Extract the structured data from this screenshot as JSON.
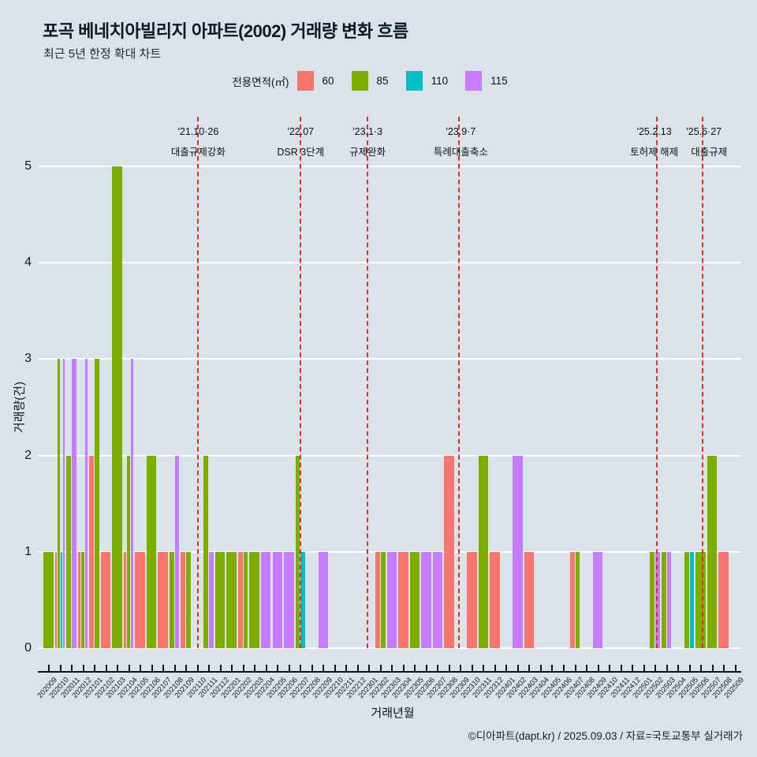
{
  "title": "포곡 베네치아빌리지 아파트(2002) 거래량 변화 흐름",
  "subtitle": "최근 5년 한정 확대 차트",
  "legend": {
    "label": "전용면적(㎡)",
    "items": [
      {
        "name": "60",
        "color": "#f8766d"
      },
      {
        "name": "85",
        "color": "#7cae00"
      },
      {
        "name": "110",
        "color": "#00bfc4"
      },
      {
        "name": "115",
        "color": "#c77cff"
      }
    ]
  },
  "footer": "©디아파트(dapt.kr) / 2025.09.03 / 자료=국토교통부 실거래가",
  "chart_data": {
    "type": "bar",
    "title": "포곡 베네치아빌리지 아파트(2002) 거래량 변화 흐름",
    "xlabel": "거래년월",
    "ylabel": "거래량(건)",
    "ylim": [
      0,
      5
    ],
    "yticks": [
      0,
      1,
      2,
      3,
      4,
      5
    ],
    "grid": "horizontal-white",
    "legend_position": "top-center",
    "categories": [
      "202009",
      "202010",
      "202011",
      "202012",
      "202101",
      "202102",
      "202103",
      "202104",
      "202105",
      "202106",
      "202107",
      "202108",
      "202109",
      "202110",
      "202111",
      "202112",
      "202201",
      "202202",
      "202203",
      "202204",
      "202205",
      "202206",
      "202207",
      "202208",
      "202209",
      "202210",
      "202211",
      "202212",
      "202301",
      "202302",
      "202303",
      "202304",
      "202305",
      "202306",
      "202307",
      "202308",
      "202309",
      "202310",
      "202311",
      "202312",
      "202401",
      "202402",
      "202403",
      "202404",
      "202405",
      "202406",
      "202407",
      "202408",
      "202409",
      "202410",
      "202411",
      "202412",
      "202501",
      "202502",
      "202503",
      "202504",
      "202505",
      "202506",
      "202507",
      "202508",
      "202509"
    ],
    "series": [
      {
        "name": "60",
        "color": "#f8766d",
        "values": {
          "202010": 1,
          "202012": 1,
          "202101": 2,
          "202102": 1,
          "202104": 1,
          "202105": 1,
          "202107": 1,
          "202109": 1,
          "202202": 1,
          "202302": 1,
          "202304": 1,
          "202308": 2,
          "202310": 1,
          "202312": 1,
          "202403": 1,
          "202407": 1,
          "202508": 1
        }
      },
      {
        "name": "85",
        "color": "#7cae00",
        "values": {
          "202009": 1,
          "202010": 3,
          "202011": 2,
          "202012": 1,
          "202101": 3,
          "202103": 5,
          "202104": 2,
          "202106": 2,
          "202108": 1,
          "202109": 1,
          "202111": 2,
          "202112": 1,
          "202201": 1,
          "202202": 1,
          "202203": 1,
          "202207": 2,
          "202302": 1,
          "202305": 1,
          "202311": 2,
          "202407": 1,
          "202502": 1,
          "202503": 1,
          "202505": 1,
          "202506": 1,
          "202507": 2
        }
      },
      {
        "name": "110",
        "color": "#00bfc4",
        "values": {
          "202010": 1,
          "202207": 1,
          "202505": 1
        }
      },
      {
        "name": "115",
        "color": "#c77cff",
        "values": {
          "202010": 3,
          "202011": 3,
          "202012": 3,
          "202104": 3,
          "202108": 2,
          "202111": 1,
          "202204": 1,
          "202205": 1,
          "202206": 1,
          "202209": 1,
          "202303": 1,
          "202306": 1,
          "202307": 1,
          "202402": 2,
          "202409": 1,
          "202502": 1,
          "202503": 1
        }
      }
    ],
    "events": [
      {
        "date": "'21.10·26",
        "label": "대출규제강화",
        "month": "202110",
        "dx": 0.05,
        "tdx": 0,
        "tdx2": 0
      },
      {
        "date": "'22.07",
        "label": "DSR 3단계",
        "month": "202207",
        "dx": 0,
        "tdx": 0,
        "tdx2": 0
      },
      {
        "date": "'23.1·3",
        "label": "규제완화",
        "month": "202301",
        "dx": -0.15,
        "tdx": 0,
        "tdx2": 0
      },
      {
        "date": "'23.9·7",
        "label": "특례대출축소",
        "month": "202309",
        "dx": -0.2,
        "tdx": 0.2,
        "tdx2": 0.2
      },
      {
        "date": "'25.2.13",
        "label": "토허제 해제",
        "month": "202502",
        "dx": 0.1,
        "tdx": -0.2,
        "tdx2": -0.2
      },
      {
        "date": "'25.6·27",
        "label": "대출규제",
        "month": "202506",
        "dx": 0.1,
        "tdx": 0.15,
        "tdx2": 0.6
      }
    ]
  }
}
